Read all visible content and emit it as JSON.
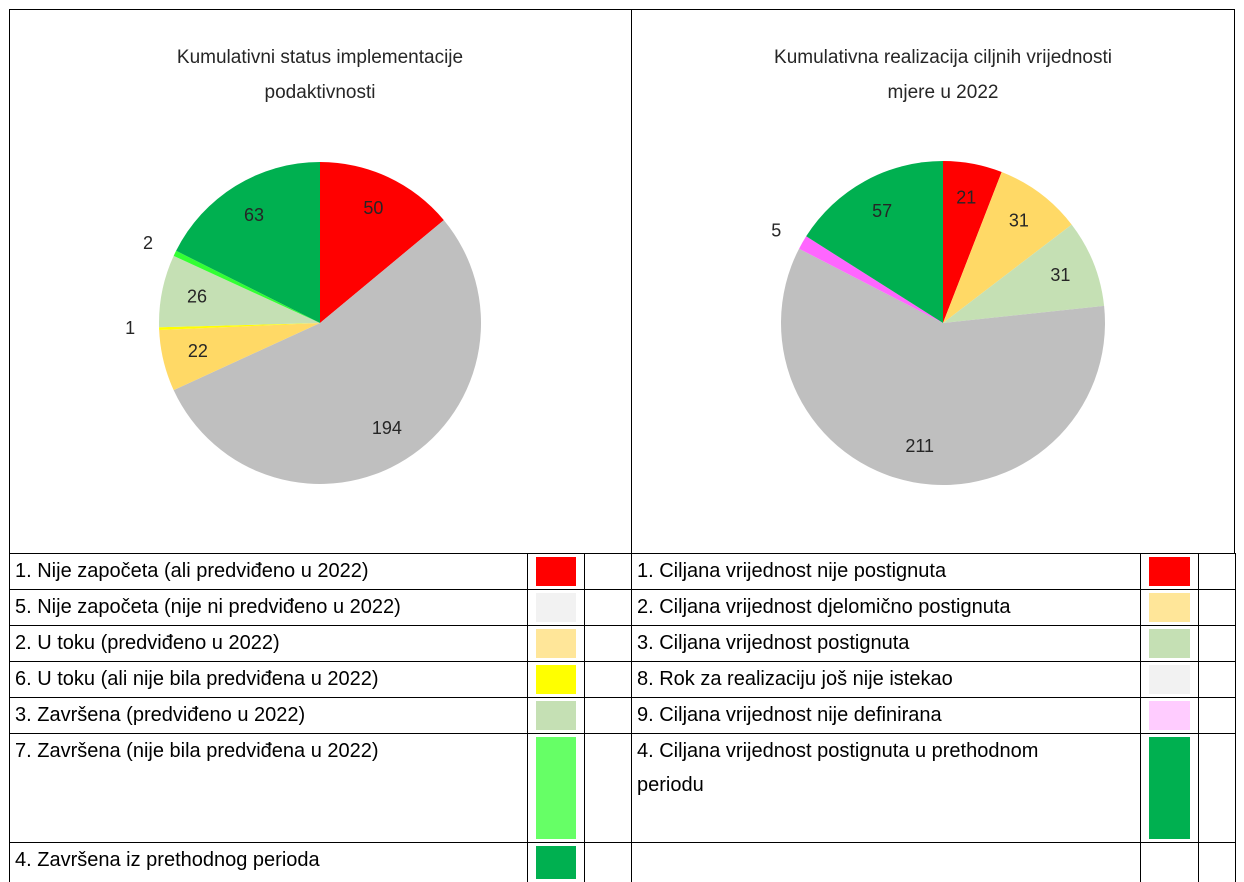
{
  "chart_data": [
    {
      "type": "pie",
      "title": "Kumulativni status implementacije podaktivnosti",
      "values": [
        50,
        194,
        22,
        1,
        26,
        2,
        63
      ],
      "colors": [
        "#ff0000",
        "#bfbfbf",
        "#ffd966",
        "#ffff00",
        "#c5e0b4",
        "#33ff33",
        "#00b050"
      ]
    },
    {
      "type": "pie",
      "title": "Kumulativna realizacija ciljnih vrijednosti  mjere u 2022",
      "values": [
        21,
        31,
        31,
        211,
        5,
        57
      ],
      "colors": [
        "#ff0000",
        "#ffd966",
        "#c5e0b4",
        "#bfbfbf",
        "#ff66ff",
        "#00b050"
      ]
    }
  ],
  "legends": [
    {
      "rows": [
        {
          "label": "1. Nije započeta (ali predviđeno u 2022)",
          "color": "#ff0000"
        },
        {
          "label": "5. Nije započeta (nije ni predviđeno u 2022)",
          "color": "#f2f2f2"
        },
        {
          "label": "2. U toku (predviđeno u 2022)",
          "color": "#ffe699"
        },
        {
          "label": "6. U toku (ali nije bila predviđena u 2022)",
          "color": "#ffff00"
        },
        {
          "label": "3. Završena (predviđeno u 2022)",
          "color": "#c5e0b4"
        },
        {
          "label": "7. Završena (nije bila predviđena u 2022)",
          "color": "#66ff66"
        },
        {
          "label": "4. Završena iz prethodnog perioda",
          "color": "#00b050"
        }
      ]
    },
    {
      "rows": [
        {
          "label": "1. Ciljana vrijednost nije postignuta",
          "color": "#ff0000"
        },
        {
          "label": "2. Ciljana vrijednost djelomično postignuta",
          "color": "#ffe699"
        },
        {
          "label": "3. Ciljana vrijednost postignuta",
          "color": "#c5e0b4"
        },
        {
          "label": "8. Rok za realizaciju još nije istekao",
          "color": "#f2f2f2"
        },
        {
          "label": "9. Ciljana vrijednost nije definirana",
          "color": "#ffccff"
        },
        {
          "label": "4. Ciljana vrijednost postignuta u prethodnom periodu",
          "color": "#00b050"
        }
      ]
    }
  ]
}
